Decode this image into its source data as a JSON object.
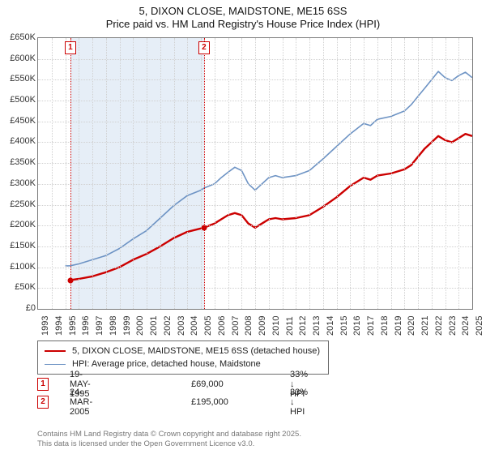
{
  "title": {
    "line1": "5, DIXON CLOSE, MAIDSTONE, ME15 6SS",
    "line2": "Price paid vs. HM Land Registry's House Price Index (HPI)"
  },
  "chart": {
    "type": "line",
    "background_color": "#ffffff",
    "plot_border_color": "#7a7a7a",
    "grid_color": "#d0d0d0",
    "grid_style": "dotted",
    "shaded_region_color": "#e6eef7",
    "marker_border_color": "#cc0000",
    "marker_text_color": "#cc0000",
    "dot_color": "#cc0000",
    "x_axis": {
      "min_year": 1993,
      "max_year": 2025,
      "tick_step": 1,
      "label_fontsize": 11,
      "label_rotation_deg": -90
    },
    "y_axis": {
      "min": 0,
      "max": 650000,
      "tick_step": 50000,
      "prefix": "£",
      "suffix": "K",
      "divisor": 1000,
      "label_fontsize": 11
    },
    "series": [
      {
        "id": "price_paid",
        "label": "5, DIXON CLOSE, MAIDSTONE, ME15 6SS (detached house)",
        "color": "#cc0000",
        "line_width": 2.4,
        "points": [
          {
            "year": 1995.38,
            "value": 69000
          },
          {
            "year": 1996.0,
            "value": 72000
          },
          {
            "year": 1997.0,
            "value": 78000
          },
          {
            "year": 1998.0,
            "value": 88000
          },
          {
            "year": 1999.0,
            "value": 100000
          },
          {
            "year": 2000.0,
            "value": 118000
          },
          {
            "year": 2001.0,
            "value": 132000
          },
          {
            "year": 2002.0,
            "value": 150000
          },
          {
            "year": 2003.0,
            "value": 170000
          },
          {
            "year": 2004.0,
            "value": 185000
          },
          {
            "year": 2005.23,
            "value": 195000
          },
          {
            "year": 2006.0,
            "value": 205000
          },
          {
            "year": 2006.5,
            "value": 215000
          },
          {
            "year": 2007.0,
            "value": 225000
          },
          {
            "year": 2007.5,
            "value": 230000
          },
          {
            "year": 2008.0,
            "value": 225000
          },
          {
            "year": 2008.5,
            "value": 205000
          },
          {
            "year": 2009.0,
            "value": 195000
          },
          {
            "year": 2009.5,
            "value": 205000
          },
          {
            "year": 2010.0,
            "value": 215000
          },
          {
            "year": 2010.5,
            "value": 218000
          },
          {
            "year": 2011.0,
            "value": 215000
          },
          {
            "year": 2012.0,
            "value": 218000
          },
          {
            "year": 2013.0,
            "value": 225000
          },
          {
            "year": 2014.0,
            "value": 245000
          },
          {
            "year": 2015.0,
            "value": 268000
          },
          {
            "year": 2016.0,
            "value": 295000
          },
          {
            "year": 2017.0,
            "value": 315000
          },
          {
            "year": 2017.5,
            "value": 310000
          },
          {
            "year": 2018.0,
            "value": 320000
          },
          {
            "year": 2019.0,
            "value": 325000
          },
          {
            "year": 2020.0,
            "value": 335000
          },
          {
            "year": 2020.5,
            "value": 345000
          },
          {
            "year": 2021.0,
            "value": 365000
          },
          {
            "year": 2021.5,
            "value": 385000
          },
          {
            "year": 2022.0,
            "value": 400000
          },
          {
            "year": 2022.5,
            "value": 415000
          },
          {
            "year": 2023.0,
            "value": 405000
          },
          {
            "year": 2023.5,
            "value": 400000
          },
          {
            "year": 2024.0,
            "value": 410000
          },
          {
            "year": 2024.5,
            "value": 420000
          },
          {
            "year": 2025.0,
            "value": 415000
          }
        ]
      },
      {
        "id": "hpi",
        "label": "HPI: Average price, detached house, Maidstone",
        "color": "#6d93c4",
        "line_width": 1.6,
        "points": [
          {
            "year": 1995.0,
            "value": 103000
          },
          {
            "year": 1995.38,
            "value": 103500
          },
          {
            "year": 1996.0,
            "value": 108000
          },
          {
            "year": 1997.0,
            "value": 118000
          },
          {
            "year": 1998.0,
            "value": 128000
          },
          {
            "year": 1999.0,
            "value": 145000
          },
          {
            "year": 2000.0,
            "value": 168000
          },
          {
            "year": 2001.0,
            "value": 188000
          },
          {
            "year": 2002.0,
            "value": 218000
          },
          {
            "year": 2003.0,
            "value": 248000
          },
          {
            "year": 2004.0,
            "value": 272000
          },
          {
            "year": 2005.0,
            "value": 285000
          },
          {
            "year": 2005.23,
            "value": 290000
          },
          {
            "year": 2006.0,
            "value": 300000
          },
          {
            "year": 2006.5,
            "value": 315000
          },
          {
            "year": 2007.0,
            "value": 328000
          },
          {
            "year": 2007.5,
            "value": 340000
          },
          {
            "year": 2008.0,
            "value": 332000
          },
          {
            "year": 2008.5,
            "value": 300000
          },
          {
            "year": 2009.0,
            "value": 285000
          },
          {
            "year": 2009.5,
            "value": 300000
          },
          {
            "year": 2010.0,
            "value": 315000
          },
          {
            "year": 2010.5,
            "value": 320000
          },
          {
            "year": 2011.0,
            "value": 315000
          },
          {
            "year": 2012.0,
            "value": 320000
          },
          {
            "year": 2013.0,
            "value": 332000
          },
          {
            "year": 2014.0,
            "value": 360000
          },
          {
            "year": 2015.0,
            "value": 390000
          },
          {
            "year": 2016.0,
            "value": 420000
          },
          {
            "year": 2017.0,
            "value": 445000
          },
          {
            "year": 2017.5,
            "value": 440000
          },
          {
            "year": 2018.0,
            "value": 455000
          },
          {
            "year": 2019.0,
            "value": 462000
          },
          {
            "year": 2020.0,
            "value": 475000
          },
          {
            "year": 2020.5,
            "value": 490000
          },
          {
            "year": 2021.0,
            "value": 510000
          },
          {
            "year": 2021.5,
            "value": 530000
          },
          {
            "year": 2022.0,
            "value": 550000
          },
          {
            "year": 2022.5,
            "value": 570000
          },
          {
            "year": 2023.0,
            "value": 555000
          },
          {
            "year": 2023.5,
            "value": 548000
          },
          {
            "year": 2024.0,
            "value": 560000
          },
          {
            "year": 2024.5,
            "value": 568000
          },
          {
            "year": 2025.0,
            "value": 555000
          }
        ]
      }
    ],
    "sale_markers": [
      {
        "id": "1",
        "year": 1995.38,
        "value": 69000
      },
      {
        "id": "2",
        "year": 2005.23,
        "value": 195000
      }
    ]
  },
  "legend": {
    "items": [
      {
        "color": "#cc0000",
        "line_width": 2.4,
        "label": "5, DIXON CLOSE, MAIDSTONE, ME15 6SS (detached house)"
      },
      {
        "color": "#6d93c4",
        "line_width": 1.6,
        "label": "HPI: Average price, detached house, Maidstone"
      }
    ]
  },
  "sales_table": {
    "rows": [
      {
        "marker": "1",
        "date": "19-MAY-1995",
        "price": "£69,000",
        "change": "33% ↓ HPI"
      },
      {
        "marker": "2",
        "date": "24-MAR-2005",
        "price": "£195,000",
        "change": "33% ↓ HPI"
      }
    ],
    "col_offsets": {
      "date": 40,
      "price": 190,
      "change": 312
    }
  },
  "attribution": {
    "line1": "Contains HM Land Registry data © Crown copyright and database right 2025.",
    "line2": "This data is licensed under the Open Government Licence v3.0."
  }
}
